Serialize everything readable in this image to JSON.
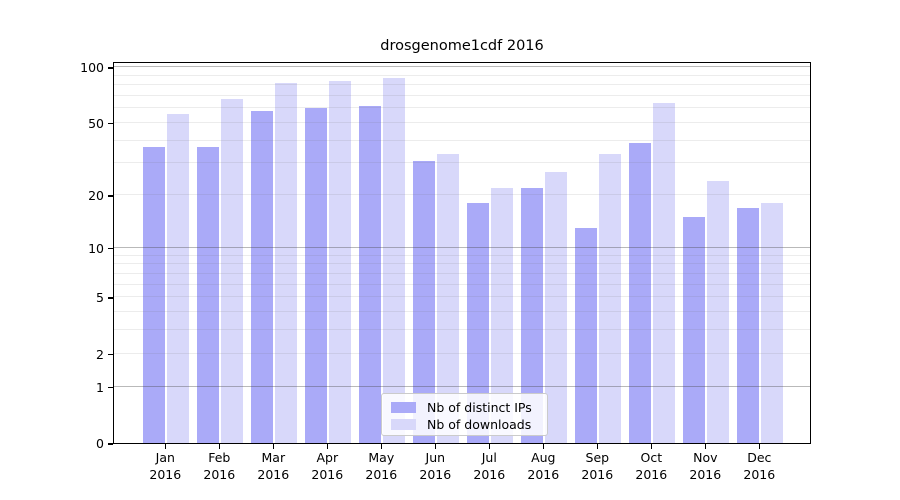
{
  "chart_data": {
    "type": "bar",
    "title": "drosgenome1cdf 2016",
    "categories": [
      "Jan 2016",
      "Feb 2016",
      "Mar 2016",
      "Apr 2016",
      "May 2016",
      "Jun 2016",
      "Jul 2016",
      "Aug 2016",
      "Sep 2016",
      "Oct 2016",
      "Nov 2016",
      "Dec 2016"
    ],
    "series": [
      {
        "name": "Nb of distinct IPs",
        "color": "#aaaaf8",
        "values": [
          37,
          37,
          58,
          60,
          62,
          31,
          18,
          22,
          13,
          39,
          15,
          17
        ]
      },
      {
        "name": "Nb of downloads",
        "color": "#d8d8fa",
        "values": [
          56,
          67,
          82,
          84,
          88,
          34,
          22,
          27,
          34,
          64,
          24,
          18
        ]
      }
    ],
    "xlabel": "",
    "ylabel": "",
    "yscale": "log1p",
    "ylim": [
      0,
      108
    ],
    "yticks": [
      0,
      1,
      2,
      5,
      10,
      20,
      50,
      100
    ],
    "ytick_labels": [
      "0",
      "1",
      "2",
      "5",
      "10",
      "20",
      "50",
      "100"
    ],
    "grid_major_values": [
      1,
      10,
      100
    ],
    "grid_minor_values": [
      2,
      3,
      4,
      5,
      6,
      7,
      8,
      9,
      20,
      30,
      40,
      50,
      60,
      70,
      80,
      90
    ],
    "grid": "horizontal major+minor, drawn over bars",
    "legend_position": "lower center inside plot",
    "colors": {
      "distinct_ips": "#aaaaf8",
      "downloads": "#d8d8fa",
      "axis": "#000000",
      "grid_major": "#b9b9b9",
      "grid_minor": "#ededed",
      "legend_border": "#cbcbcb",
      "legend_background": "rgba(255,255,255,0.85)",
      "text": "#000000"
    }
  }
}
